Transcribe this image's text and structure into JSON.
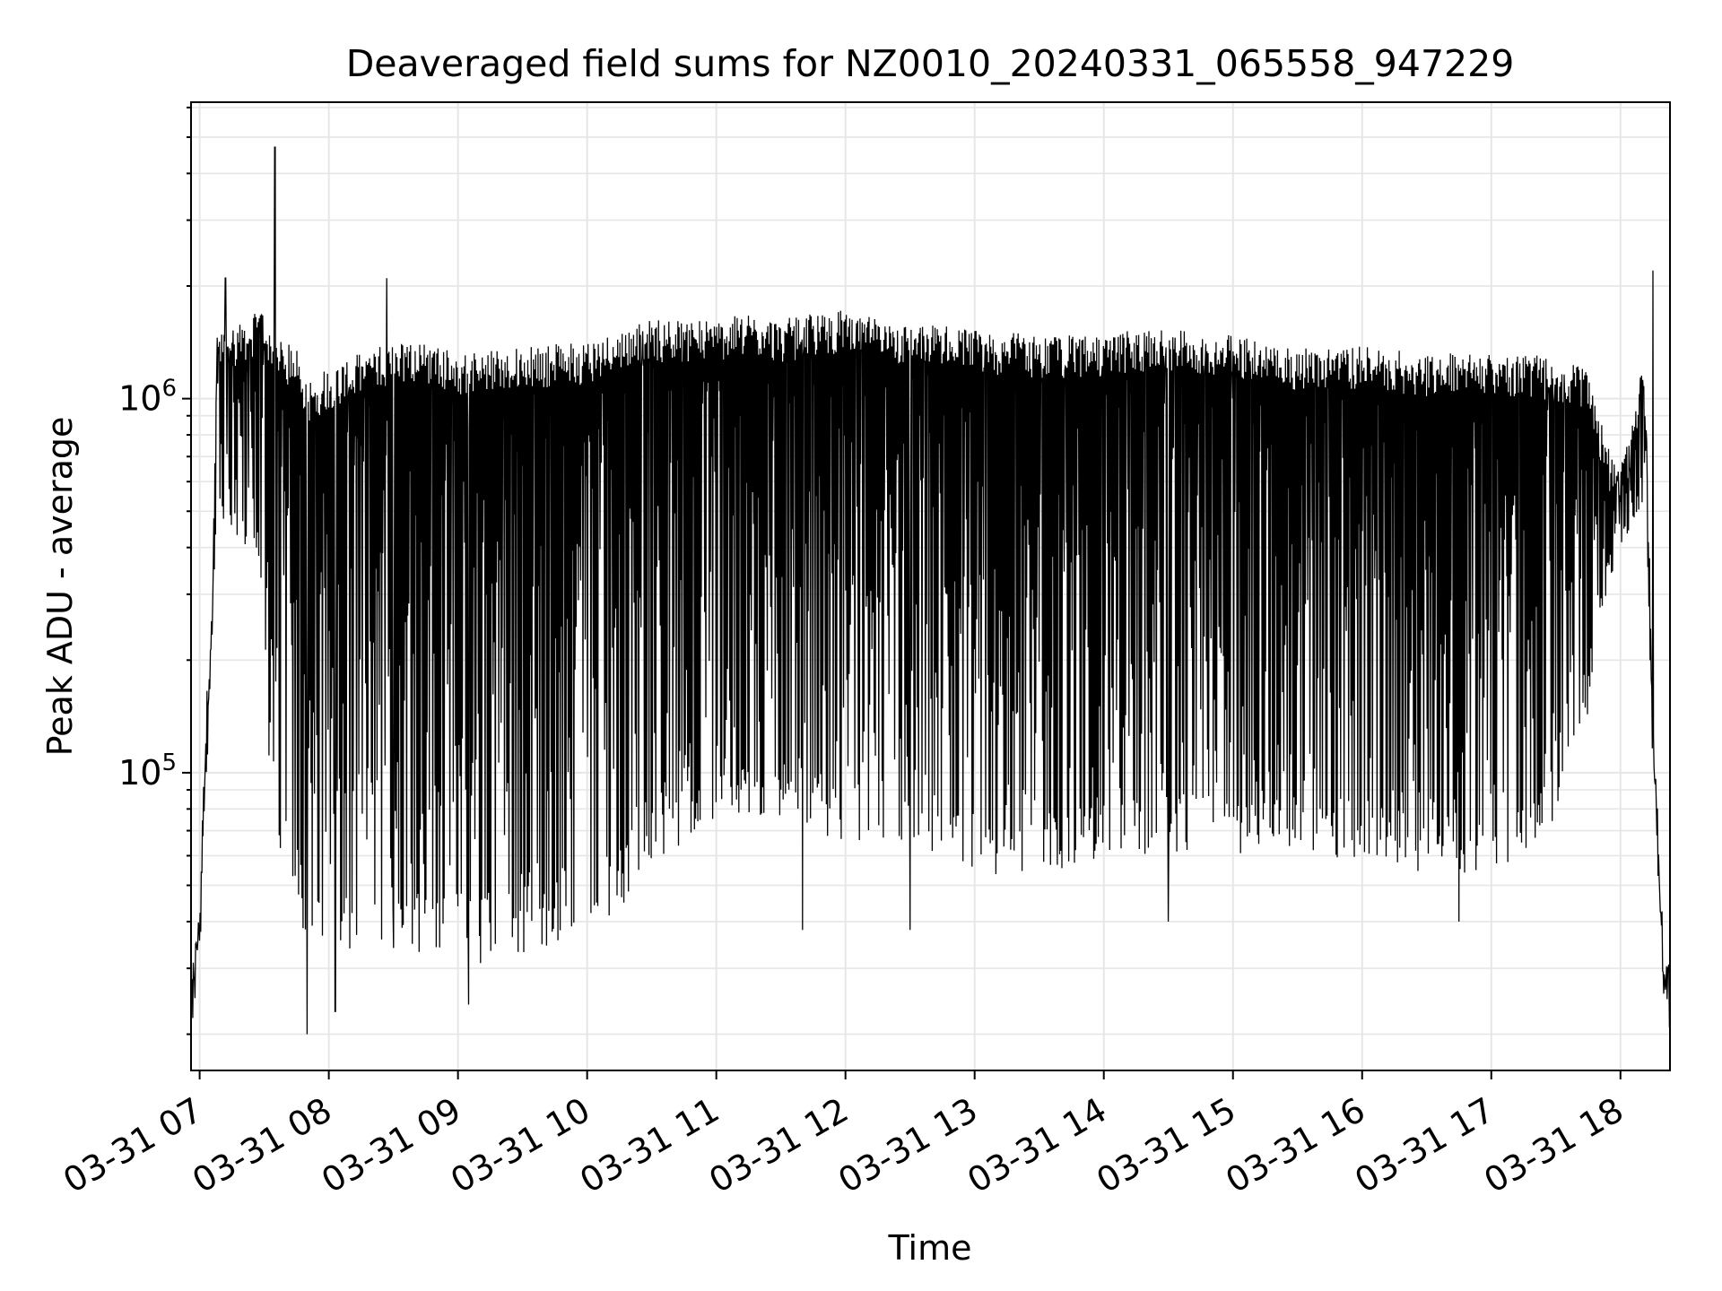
{
  "chart_data": {
    "type": "line",
    "title": "Deaveraged field sums for NZ0010_20240331_065558_947229",
    "xlabel": "Time",
    "ylabel": "Peak ADU - average",
    "yscale": "log",
    "grid": true,
    "xlim": [
      "2024-03-31 06:56",
      "2024-03-31 18:23"
    ],
    "ylim": [
      16000,
      6200000
    ],
    "xticks": [
      "03-31 07",
      "03-31 08",
      "03-31 09",
      "03-31 10",
      "03-31 11",
      "03-31 12",
      "03-31 13",
      "03-31 14",
      "03-31 15",
      "03-31 16",
      "03-31 17",
      "03-31 18"
    ],
    "yticks": [
      {
        "value": 100000,
        "base": "10",
        "exp": "5"
      },
      {
        "value": 1000000,
        "base": "10",
        "exp": "6"
      }
    ],
    "series": [
      {
        "color": "#000000",
        "note": "dense per-exposure signal",
        "envelope": {
          "time": [
            "06:56",
            "07:00",
            "07:03",
            "07:06",
            "07:08",
            "07:10",
            "07:20",
            "07:30",
            "07:32",
            "07:37",
            "07:45",
            "07:50",
            "08:00",
            "08:15",
            "08:30",
            "08:45",
            "09:00",
            "09:30",
            "10:00",
            "10:15",
            "10:30",
            "11:00",
            "11:15",
            "11:30",
            "11:45",
            "12:00",
            "12:15",
            "12:30",
            "12:45",
            "13:00",
            "13:30",
            "14:00",
            "14:15",
            "14:30",
            "15:00",
            "15:30",
            "16:00",
            "16:30",
            "17:00",
            "17:15",
            "17:30",
            "17:45",
            "17:50",
            "17:55",
            "18:00",
            "18:05",
            "18:10",
            "18:12",
            "18:15",
            "18:20",
            "18:23"
          ],
          "upper": [
            28000,
            45000,
            150000,
            300000,
            1500000,
            1500000,
            1600000,
            1700000,
            1600000,
            1400000,
            1350000,
            1100000,
            1200000,
            1300000,
            1400000,
            1400000,
            1300000,
            1350000,
            1400000,
            1500000,
            1600000,
            1600000,
            1650000,
            1600000,
            1650000,
            1700000,
            1600000,
            1550000,
            1550000,
            1500000,
            1450000,
            1450000,
            1500000,
            1500000,
            1450000,
            1350000,
            1350000,
            1300000,
            1300000,
            1300000,
            1250000,
            1200000,
            900000,
            700000,
            700000,
            800000,
            1300000,
            900000,
            150000,
            35000,
            30000
          ],
          "lower": [
            20000,
            26000,
            80000,
            250000,
            500000,
            450000,
            400000,
            300000,
            80000,
            60000,
            45000,
            30000,
            28000,
            30000,
            32000,
            30000,
            28000,
            30000,
            35000,
            40000,
            55000,
            65000,
            70000,
            70000,
            65000,
            60000,
            58000,
            55000,
            50000,
            48000,
            50000,
            52000,
            55000,
            58000,
            55000,
            55000,
            55000,
            50000,
            50000,
            55000,
            70000,
            120000,
            250000,
            300000,
            400000,
            450000,
            500000,
            500000,
            100000,
            25000,
            20000
          ]
        },
        "spikes": [
          {
            "time": "07:35",
            "value": 4700000
          },
          {
            "time": "07:12",
            "value": 2100000
          },
          {
            "time": "08:27",
            "value": 2100000
          },
          {
            "time": "18:15",
            "value": 2200000
          },
          {
            "time": "07:50",
            "value": 20000
          },
          {
            "time": "08:03",
            "value": 23000
          },
          {
            "time": "09:05",
            "value": 24000
          },
          {
            "time": "08:30",
            "value": 34000
          },
          {
            "time": "11:40",
            "value": 38000
          },
          {
            "time": "12:30",
            "value": 38000
          },
          {
            "time": "14:30",
            "value": 40000
          },
          {
            "time": "16:45",
            "value": 40000
          }
        ]
      }
    ]
  }
}
